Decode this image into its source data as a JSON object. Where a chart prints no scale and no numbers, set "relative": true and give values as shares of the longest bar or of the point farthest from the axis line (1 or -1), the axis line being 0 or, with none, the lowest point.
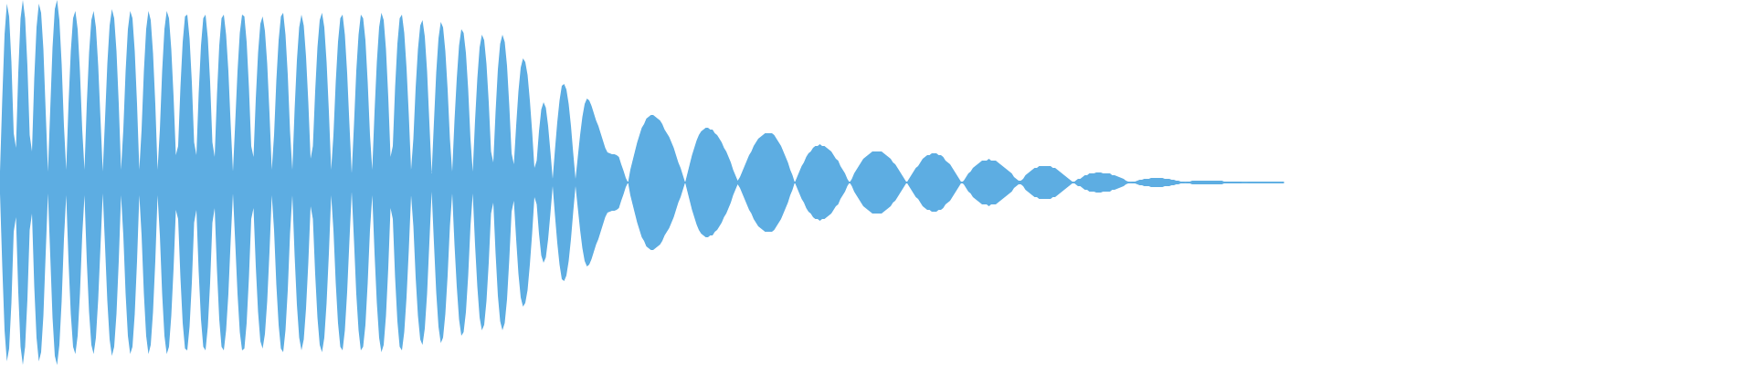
{
  "chart_data": {
    "type": "area",
    "relative": true,
    "categories": [
      null,
      null,
      null,
      null,
      null,
      null,
      null,
      null,
      null,
      null,
      null,
      null,
      null,
      null,
      null,
      null,
      null,
      null,
      null,
      null,
      null,
      null,
      null,
      null,
      null,
      null,
      null,
      null,
      null,
      null,
      null,
      null,
      null,
      null,
      null,
      null,
      null,
      null,
      null,
      null,
      null,
      null,
      null,
      null,
      null,
      null,
      null,
      null,
      null,
      null,
      null,
      null,
      null,
      null,
      null,
      null,
      null,
      null,
      null,
      null,
      null,
      null,
      null,
      null,
      null,
      null,
      null,
      null,
      null,
      null,
      null,
      null,
      null,
      null,
      null,
      null,
      null,
      null,
      null,
      null,
      null,
      null,
      null,
      null,
      null,
      null,
      null,
      null,
      null,
      null,
      null,
      null,
      null,
      null,
      null,
      null,
      null,
      null,
      null,
      null,
      null,
      null,
      null,
      null,
      null,
      null,
      null,
      null,
      null,
      null,
      null,
      null,
      null,
      null,
      null,
      null,
      null,
      null,
      null,
      null,
      null,
      null,
      null,
      null,
      null,
      null,
      null,
      null,
      null,
      null,
      null,
      null,
      null,
      null,
      null,
      null,
      null,
      null,
      null,
      null,
      null,
      null,
      null,
      null,
      null,
      null,
      null,
      null,
      null,
      null,
      null,
      null,
      null,
      null,
      null,
      null,
      null,
      null,
      null,
      null,
      null,
      null,
      null,
      null,
      null,
      null,
      null,
      null,
      null,
      null,
      null,
      null,
      null,
      null,
      null,
      null,
      null,
      null,
      null,
      null,
      null,
      null,
      null,
      null,
      null,
      null,
      null,
      null,
      null,
      null,
      null,
      null,
      null,
      null,
      null,
      null,
      null,
      null,
      null,
      null,
      null,
      null,
      null,
      null,
      null,
      null,
      null,
      null,
      null,
      null,
      null,
      null,
      null,
      null,
      null,
      null,
      null,
      null,
      null,
      null,
      null,
      null,
      null,
      null,
      null,
      null,
      null,
      null,
      null,
      null,
      null,
      null,
      null,
      null,
      null,
      null,
      null,
      null,
      null,
      null,
      null,
      null,
      null,
      null,
      null,
      null,
      null,
      null,
      null,
      null,
      null,
      null,
      null,
      null,
      null,
      null,
      null,
      null,
      null,
      null,
      null,
      null,
      null,
      null,
      null,
      null,
      null,
      null,
      null,
      null,
      null,
      null,
      null,
      null,
      null,
      null,
      null,
      null,
      null,
      null,
      null,
      null,
      null,
      null,
      null,
      null,
      null,
      null,
      null,
      null,
      null,
      null,
      null,
      null,
      null,
      null,
      null,
      null,
      null,
      null,
      null,
      null,
      null,
      null,
      null,
      null,
      null,
      null,
      null,
      null,
      null,
      null,
      null,
      null,
      null,
      null,
      null,
      null,
      null,
      null,
      null,
      null,
      null,
      null,
      null,
      null,
      null,
      null,
      null,
      null,
      null,
      null,
      null,
      null,
      null,
      null,
      null,
      null,
      null,
      null,
      null,
      null,
      null,
      null,
      null,
      null,
      null,
      null,
      null,
      null,
      null,
      null,
      null,
      null,
      null,
      null,
      null,
      null,
      null,
      null,
      null,
      null,
      null,
      null,
      null,
      null,
      null,
      null,
      null,
      null,
      null,
      null,
      null,
      null,
      null,
      null,
      null,
      null,
      null,
      null,
      null,
      null,
      null,
      null,
      null,
      null,
      null,
      null,
      null,
      null,
      null,
      null,
      null,
      null,
      null,
      null,
      null,
      null,
      null,
      null,
      null,
      null,
      null,
      null,
      null,
      null,
      null,
      null,
      null,
      null,
      null,
      null,
      null,
      null,
      null,
      null,
      null,
      null,
      null,
      null,
      null,
      null,
      null,
      null,
      null,
      null,
      null,
      null,
      null,
      null,
      null,
      null,
      null,
      null,
      null,
      null,
      null,
      null,
      null,
      null,
      null,
      null,
      null,
      null,
      null,
      null,
      null,
      null,
      null,
      null,
      null,
      null,
      null,
      null,
      null,
      null,
      null,
      null,
      null,
      null,
      null,
      null,
      null,
      null,
      null,
      null,
      null,
      null,
      null,
      null,
      null,
      null,
      null,
      null,
      null,
      null,
      null,
      null,
      null,
      null,
      null,
      null,
      null,
      null,
      null,
      null,
      null,
      null,
      null,
      null,
      null,
      null,
      null,
      null,
      null,
      null,
      null,
      null,
      null,
      null,
      null,
      null,
      null,
      null,
      null,
      null,
      null,
      null,
      null,
      null,
      null,
      null,
      null,
      null,
      null,
      null,
      null,
      null,
      null,
      null,
      null,
      null,
      null,
      null,
      null,
      null,
      null,
      null,
      null,
      null,
      null,
      null,
      null,
      null,
      null,
      null,
      null,
      null,
      null,
      null,
      null,
      null,
      null,
      null,
      null,
      null,
      null,
      null,
      null,
      null,
      null,
      null,
      null,
      null,
      null,
      null,
      null,
      null,
      null,
      null,
      null,
      null,
      null
    ],
    "ref_lines": [
      {
        "axis": "y",
        "value": 0,
        "color": "#5dade2"
      }
    ],
    "series": [
      {
        "color": "#5dade2",
        "values": [
          0.06,
          0.46,
          0.81,
          0.98,
          0.91,
          0.66,
          0.27,
          0.19,
          0.6,
          0.9,
          1.0,
          0.9,
          0.64,
          0.26,
          0.17,
          0.57,
          0.85,
          0.98,
          0.93,
          0.73,
          0.39,
          0.06,
          0.4,
          0.74,
          0.95,
          1.0,
          0.89,
          0.65,
          0.31,
          0.07,
          0.43,
          0.72,
          0.9,
          0.94,
          0.84,
          0.61,
          0.29,
          0.07,
          0.43,
          0.71,
          0.89,
          0.94,
          0.85,
          0.64,
          0.35,
          0.06,
          0.35,
          0.65,
          0.86,
          0.95,
          0.9,
          0.72,
          0.43,
          0.07,
          0.29,
          0.61,
          0.84,
          0.94,
          0.9,
          0.72,
          0.43,
          0.07,
          0.29,
          0.61,
          0.84,
          0.94,
          0.89,
          0.71,
          0.43,
          0.07,
          0.29,
          0.61,
          0.84,
          0.94,
          0.9,
          0.73,
          0.47,
          0.15,
          0.2,
          0.52,
          0.77,
          0.91,
          0.92,
          0.79,
          0.55,
          0.22,
          0.15,
          0.49,
          0.75,
          0.9,
          0.92,
          0.79,
          0.55,
          0.22,
          0.14,
          0.48,
          0.75,
          0.9,
          0.92,
          0.81,
          0.61,
          0.32,
          0.06,
          0.33,
          0.61,
          0.82,
          0.92,
          0.91,
          0.77,
          0.52,
          0.2,
          0.14,
          0.46,
          0.71,
          0.87,
          0.91,
          0.83,
          0.65,
          0.38,
          0.07,
          0.26,
          0.56,
          0.78,
          0.91,
          0.93,
          0.81,
          0.59,
          0.28,
          0.07,
          0.4,
          0.67,
          0.85,
          0.92,
          0.86,
          0.69,
          0.44,
          0.13,
          0.2,
          0.5,
          0.74,
          0.89,
          0.93,
          0.85,
          0.66,
          0.39,
          0.07,
          0.26,
          0.55,
          0.77,
          0.9,
          0.92,
          0.81,
          0.6,
          0.32,
          0.05,
          0.32,
          0.61,
          0.81,
          0.92,
          0.9,
          0.78,
          0.55,
          0.26,
          0.07,
          0.39,
          0.66,
          0.85,
          0.93,
          0.89,
          0.73,
          0.47,
          0.14,
          0.2,
          0.52,
          0.76,
          0.9,
          0.92,
          0.82,
          0.63,
          0.37,
          0.07,
          0.24,
          0.52,
          0.73,
          0.86,
          0.89,
          0.8,
          0.61,
          0.33,
          0.05,
          0.33,
          0.6,
          0.79,
          0.88,
          0.85,
          0.72,
          0.51,
          0.24,
          0.06,
          0.34,
          0.57,
          0.75,
          0.84,
          0.82,
          0.71,
          0.51,
          0.24,
          0.06,
          0.34,
          0.57,
          0.74,
          0.81,
          0.78,
          0.65,
          0.44,
          0.17,
          0.11,
          0.39,
          0.62,
          0.76,
          0.81,
          0.77,
          0.64,
          0.42,
          0.16,
          0.1,
          0.31,
          0.5,
          0.63,
          0.68,
          0.66,
          0.59,
          0.45,
          0.28,
          0.08,
          0.12,
          0.28,
          0.4,
          0.44,
          0.41,
          0.31,
          0.17,
          0.02,
          0.18,
          0.33,
          0.45,
          0.53,
          0.54,
          0.51,
          0.43,
          0.31,
          0.16,
          0.02,
          0.14,
          0.26,
          0.36,
          0.43,
          0.46,
          0.45,
          0.42,
          0.38,
          0.34,
          0.31,
          0.27,
          0.23,
          0.19,
          0.165,
          0.16,
          0.155,
          0.155,
          0.15,
          0.14,
          0.1,
          0.065,
          0.025,
          0,
          0.07,
          0.12,
          0.17,
          0.22,
          0.26,
          0.3,
          0.32,
          0.35,
          0.36,
          0.37,
          0.37,
          0.36,
          0.35,
          0.34,
          0.32,
          0.29,
          0.27,
          0.25,
          0.22,
          0.19,
          0.15,
          0.11,
          0.08,
          0.04,
          0,
          0.05,
          0.1,
          0.15,
          0.19,
          0.23,
          0.26,
          0.28,
          0.29,
          0.3,
          0.3,
          0.29,
          0.29,
          0.27,
          0.26,
          0.24,
          0.22,
          0.19,
          0.17,
          0.14,
          0.11,
          0.07,
          0.04,
          0.01,
          0.03,
          0.06,
          0.09,
          0.12,
          0.15,
          0.17,
          0.2,
          0.22,
          0.24,
          0.25,
          0.26,
          0.27,
          0.27,
          0.27,
          0.27,
          0.26,
          0.24,
          0.22,
          0.2,
          0.17,
          0.14,
          0.11,
          0.07,
          0.04,
          0,
          0.03,
          0.06,
          0.09,
          0.11,
          0.14,
          0.16,
          0.17,
          0.19,
          0.2,
          0.2,
          0.21,
          0.2,
          0.2,
          0.19,
          0.18,
          0.17,
          0.15,
          0.13,
          0.12,
          0.09,
          0.07,
          0.05,
          0.02,
          0,
          0.02,
          0.05,
          0.07,
          0.09,
          0.11,
          0.13,
          0.14,
          0.15,
          0.16,
          0.17,
          0.17,
          0.17,
          0.17,
          0.17,
          0.16,
          0.15,
          0.14,
          0.13,
          0.11,
          0.1,
          0.08,
          0.06,
          0.04,
          0.02,
          0,
          0.02,
          0.04,
          0.06,
          0.08,
          0.09,
          0.11,
          0.13,
          0.14,
          0.15,
          0.15,
          0.16,
          0.16,
          0.16,
          0.15,
          0.15,
          0.14,
          0.12,
          0.11,
          0.1,
          0.08,
          0.06,
          0.04,
          0.02,
          0,
          0.01,
          0.03,
          0.05,
          0.06,
          0.08,
          0.09,
          0.1,
          0.11,
          0.12,
          0.12,
          0.12,
          0.13,
          0.12,
          0.12,
          0.12,
          0.11,
          0.1,
          0.09,
          0.08,
          0.07,
          0.06,
          0.05,
          0.03,
          0.02,
          0.01,
          0.01,
          0.02,
          0.04,
          0.05,
          0.06,
          0.07,
          0.08,
          0.08,
          0.09,
          0.09,
          0.09,
          0.09,
          0.09,
          0.09,
          0.08,
          0.08,
          0.07,
          0.06,
          0.05,
          0.04,
          0.03,
          0.02,
          0.01,
          0,
          0.01,
          0.02,
          0.02,
          0.03,
          0.04,
          0.04,
          0.05,
          0.05,
          0.05,
          0.055,
          0.055,
          0.055,
          0.05,
          0.05,
          0.05,
          0.05,
          0.04,
          0.04,
          0.035,
          0.03,
          0.025,
          0.02,
          0.01,
          0.005,
          0,
          0.005,
          0.005,
          0.01,
          0.015,
          0.015,
          0.02,
          0.02,
          0.02,
          0.025,
          0.025,
          0.025,
          0.025,
          0.025,
          0.025,
          0.02,
          0.02,
          0.02,
          0.015,
          0.015,
          0.01,
          0.01,
          0.005,
          0.005,
          0,
          0.005,
          0.005,
          0.01,
          0.01,
          0.01,
          0.01,
          0.01,
          0.01,
          0.01,
          0.01,
          0.01,
          0.01,
          0.01,
          0.01,
          0.01,
          0.01,
          0.005,
          0.005,
          0.005,
          0.005,
          0.005,
          0.005,
          0.005,
          0.005,
          0,
          0,
          0,
          0.003,
          0.003,
          0.003,
          0.003,
          0.003,
          0.003,
          0.003,
          0.003,
          0.003,
          0.003,
          0.003,
          0.003,
          0.003,
          0.003,
          0.003,
          0.003
        ]
      },
      {
        "color": "#5dade2",
        "values": [
          -0.06,
          -0.46,
          -0.81,
          -0.98,
          -0.91,
          -0.66,
          -0.27,
          -0.19,
          -0.6,
          -0.9,
          -1.0,
          -0.9,
          -0.64,
          -0.26,
          -0.17,
          -0.57,
          -0.85,
          -0.98,
          -0.93,
          -0.73,
          -0.39,
          -0.06,
          -0.4,
          -0.74,
          -0.95,
          -1.0,
          -0.89,
          -0.65,
          -0.31,
          -0.07,
          -0.43,
          -0.72,
          -0.9,
          -0.94,
          -0.84,
          -0.61,
          -0.29,
          -0.07,
          -0.43,
          -0.71,
          -0.89,
          -0.94,
          -0.85,
          -0.64,
          -0.35,
          -0.06,
          -0.35,
          -0.65,
          -0.86,
          -0.95,
          -0.9,
          -0.72,
          -0.43,
          -0.07,
          -0.29,
          -0.61,
          -0.84,
          -0.94,
          -0.9,
          -0.72,
          -0.43,
          -0.07,
          -0.29,
          -0.61,
          -0.84,
          -0.94,
          -0.89,
          -0.71,
          -0.43,
          -0.07,
          -0.29,
          -0.61,
          -0.84,
          -0.94,
          -0.9,
          -0.73,
          -0.47,
          -0.15,
          -0.2,
          -0.52,
          -0.77,
          -0.91,
          -0.92,
          -0.79,
          -0.55,
          -0.22,
          -0.15,
          -0.49,
          -0.75,
          -0.9,
          -0.92,
          -0.79,
          -0.55,
          -0.22,
          -0.14,
          -0.48,
          -0.75,
          -0.9,
          -0.92,
          -0.81,
          -0.61,
          -0.32,
          -0.06,
          -0.33,
          -0.61,
          -0.82,
          -0.92,
          -0.91,
          -0.77,
          -0.52,
          -0.2,
          -0.14,
          -0.46,
          -0.71,
          -0.87,
          -0.91,
          -0.83,
          -0.65,
          -0.38,
          -0.07,
          -0.26,
          -0.56,
          -0.78,
          -0.91,
          -0.93,
          -0.81,
          -0.59,
          -0.28,
          -0.07,
          -0.4,
          -0.67,
          -0.85,
          -0.92,
          -0.86,
          -0.69,
          -0.44,
          -0.13,
          -0.2,
          -0.5,
          -0.74,
          -0.89,
          -0.93,
          -0.85,
          -0.66,
          -0.39,
          -0.07,
          -0.26,
          -0.55,
          -0.77,
          -0.9,
          -0.92,
          -0.81,
          -0.6,
          -0.32,
          -0.05,
          -0.32,
          -0.61,
          -0.81,
          -0.92,
          -0.9,
          -0.78,
          -0.55,
          -0.26,
          -0.07,
          -0.39,
          -0.66,
          -0.85,
          -0.93,
          -0.89,
          -0.73,
          -0.47,
          -0.14,
          -0.2,
          -0.52,
          -0.76,
          -0.9,
          -0.92,
          -0.82,
          -0.63,
          -0.37,
          -0.07,
          -0.24,
          -0.52,
          -0.73,
          -0.86,
          -0.89,
          -0.8,
          -0.61,
          -0.33,
          -0.05,
          -0.33,
          -0.6,
          -0.79,
          -0.88,
          -0.85,
          -0.72,
          -0.51,
          -0.24,
          -0.06,
          -0.34,
          -0.57,
          -0.75,
          -0.84,
          -0.82,
          -0.71,
          -0.51,
          -0.24,
          -0.06,
          -0.34,
          -0.57,
          -0.74,
          -0.81,
          -0.78,
          -0.65,
          -0.44,
          -0.17,
          -0.11,
          -0.39,
          -0.62,
          -0.76,
          -0.81,
          -0.77,
          -0.64,
          -0.42,
          -0.16,
          -0.1,
          -0.31,
          -0.5,
          -0.63,
          -0.68,
          -0.66,
          -0.59,
          -0.45,
          -0.28,
          -0.08,
          -0.12,
          -0.28,
          -0.4,
          -0.44,
          -0.41,
          -0.31,
          -0.17,
          -0.02,
          -0.18,
          -0.33,
          -0.45,
          -0.53,
          -0.54,
          -0.51,
          -0.43,
          -0.31,
          -0.16,
          -0.02,
          -0.14,
          -0.26,
          -0.36,
          -0.43,
          -0.46,
          -0.45,
          -0.42,
          -0.38,
          -0.34,
          -0.31,
          -0.27,
          -0.23,
          -0.19,
          -0.165,
          -0.16,
          -0.155,
          -0.155,
          -0.15,
          -0.14,
          -0.1,
          -0.065,
          -0.025,
          0,
          -0.07,
          -0.12,
          -0.17,
          -0.22,
          -0.26,
          -0.3,
          -0.32,
          -0.35,
          -0.36,
          -0.37,
          -0.37,
          -0.36,
          -0.35,
          -0.34,
          -0.32,
          -0.29,
          -0.27,
          -0.25,
          -0.22,
          -0.19,
          -0.15,
          -0.11,
          -0.08,
          -0.04,
          0,
          -0.05,
          -0.1,
          -0.15,
          -0.19,
          -0.23,
          -0.26,
          -0.28,
          -0.29,
          -0.3,
          -0.3,
          -0.29,
          -0.29,
          -0.27,
          -0.26,
          -0.24,
          -0.22,
          -0.19,
          -0.17,
          -0.14,
          -0.11,
          -0.07,
          -0.04,
          -0.01,
          -0.03,
          -0.06,
          -0.09,
          -0.12,
          -0.15,
          -0.17,
          -0.2,
          -0.22,
          -0.24,
          -0.25,
          -0.26,
          -0.27,
          -0.27,
          -0.27,
          -0.27,
          -0.26,
          -0.24,
          -0.22,
          -0.2,
          -0.17,
          -0.14,
          -0.11,
          -0.07,
          -0.04,
          0,
          -0.03,
          -0.06,
          -0.09,
          -0.11,
          -0.14,
          -0.16,
          -0.17,
          -0.19,
          -0.2,
          -0.2,
          -0.21,
          -0.2,
          -0.2,
          -0.19,
          -0.18,
          -0.17,
          -0.15,
          -0.13,
          -0.12,
          -0.09,
          -0.07,
          -0.05,
          -0.02,
          0,
          -0.02,
          -0.05,
          -0.07,
          -0.09,
          -0.11,
          -0.13,
          -0.14,
          -0.15,
          -0.16,
          -0.17,
          -0.17,
          -0.17,
          -0.17,
          -0.17,
          -0.16,
          -0.15,
          -0.14,
          -0.13,
          -0.11,
          -0.1,
          -0.08,
          -0.06,
          -0.04,
          -0.02,
          0,
          -0.02,
          -0.04,
          -0.06,
          -0.08,
          -0.09,
          -0.11,
          -0.13,
          -0.14,
          -0.15,
          -0.15,
          -0.16,
          -0.16,
          -0.16,
          -0.15,
          -0.15,
          -0.14,
          -0.12,
          -0.11,
          -0.1,
          -0.08,
          -0.06,
          -0.04,
          -0.02,
          0,
          -0.01,
          -0.03,
          -0.05,
          -0.06,
          -0.08,
          -0.09,
          -0.1,
          -0.11,
          -0.12,
          -0.12,
          -0.12,
          -0.13,
          -0.12,
          -0.12,
          -0.12,
          -0.11,
          -0.1,
          -0.09,
          -0.08,
          -0.07,
          -0.06,
          -0.05,
          -0.03,
          -0.02,
          -0.01,
          -0.01,
          -0.02,
          -0.04,
          -0.05,
          -0.06,
          -0.07,
          -0.08,
          -0.08,
          -0.09,
          -0.09,
          -0.09,
          -0.09,
          -0.09,
          -0.09,
          -0.08,
          -0.08,
          -0.07,
          -0.06,
          -0.05,
          -0.04,
          -0.03,
          -0.02,
          -0.01,
          0,
          -0.01,
          -0.02,
          -0.02,
          -0.03,
          -0.04,
          -0.04,
          -0.05,
          -0.05,
          -0.05,
          -0.055,
          -0.055,
          -0.055,
          -0.05,
          -0.05,
          -0.05,
          -0.05,
          -0.04,
          -0.04,
          -0.035,
          -0.03,
          -0.025,
          -0.02,
          -0.01,
          -0.005,
          0,
          -0.005,
          -0.005,
          -0.01,
          -0.015,
          -0.015,
          -0.02,
          -0.02,
          -0.02,
          -0.025,
          -0.025,
          -0.025,
          -0.025,
          -0.025,
          -0.025,
          -0.02,
          -0.02,
          -0.02,
          -0.015,
          -0.015,
          -0.01,
          -0.01,
          -0.005,
          -0.005,
          0,
          -0.005,
          -0.005,
          -0.01,
          -0.01,
          -0.01,
          -0.01,
          -0.01,
          -0.01,
          -0.01,
          -0.01,
          -0.01,
          -0.01,
          -0.01,
          -0.01,
          -0.01,
          -0.01,
          -0.005,
          -0.005,
          -0.005,
          -0.005,
          -0.005,
          -0.005,
          -0.005,
          -0.005,
          0,
          0,
          0,
          -0.003,
          -0.003,
          -0.003,
          -0.003,
          -0.003,
          -0.003,
          -0.003,
          -0.003,
          -0.003,
          -0.003,
          -0.003,
          -0.003,
          -0.003,
          -0.003,
          -0.003,
          -0.003
        ]
      }
    ]
  }
}
